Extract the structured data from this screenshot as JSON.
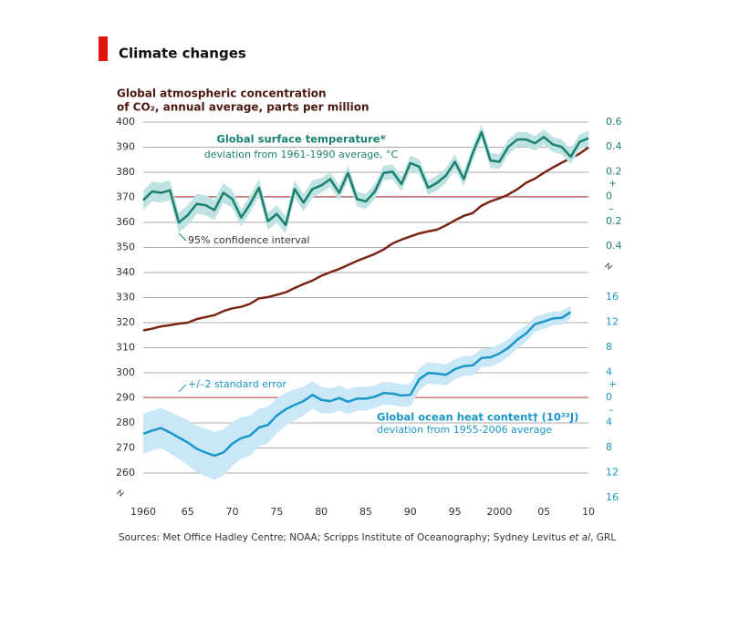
{
  "chart_data": {
    "type": "line",
    "title": "Climate changes",
    "y_label": [
      "Global atmospheric concentration",
      "of CO₂, annual average, parts per million"
    ],
    "source": [
      "Sources: Met Office Hadley Centre; NOAA; Scripps Institute of Oceanography; Sydney Levitus ",
      "et al",
      ", GRL"
    ],
    "xlim": [
      1960,
      2010
    ],
    "xticks": [
      1960,
      {
        "value": 1965,
        "label": "65"
      },
      {
        "value": 1970,
        "label": "70"
      },
      {
        "value": 1975,
        "label": "75"
      },
      {
        "value": 1980,
        "label": "80"
      },
      {
        "value": 1985,
        "label": "85"
      },
      {
        "value": 1990,
        "label": "90"
      },
      {
        "value": 1995,
        "label": "95"
      },
      2000,
      {
        "value": 2005,
        "label": "05"
      },
      {
        "value": 2010,
        "label": "10"
      }
    ],
    "ylim": [
      260,
      400
    ],
    "yticks": [
      260,
      270,
      280,
      290,
      300,
      310,
      320,
      330,
      340,
      350,
      360,
      370,
      380,
      390,
      400
    ],
    "y2lim": [
      -0.4,
      0.6
    ],
    "y2ticks": [
      {
        "value": -0.4,
        "label": "0.4"
      },
      {
        "value": -0.2,
        "label": "0.2"
      },
      0,
      0.2,
      0.4,
      0.6
    ],
    "y2_signs": [
      "+",
      "–"
    ],
    "y3lim": [
      -16,
      16
    ],
    "y3ticks": [
      {
        "value": -16,
        "label": "16"
      },
      {
        "value": -12,
        "label": "12"
      },
      {
        "value": -8,
        "label": "8"
      },
      {
        "value": -4,
        "label": "4"
      },
      0,
      4,
      8,
      12,
      16
    ],
    "y3_signs": [
      "+",
      "–"
    ],
    "series": [
      {
        "name": "CO2",
        "color": "#7a2513",
        "axis": "y",
        "x0": 1960,
        "values": [
          316.9,
          317.6,
          318.5,
          319.0,
          319.6,
          320.0,
          321.4,
          322.2,
          323.0,
          324.6,
          325.7,
          326.3,
          327.5,
          329.7,
          330.2,
          331.1,
          332.1,
          333.8,
          335.4,
          336.8,
          338.7,
          340.1,
          341.4,
          343.0,
          344.6,
          346.0,
          347.4,
          349.2,
          351.6,
          353.1,
          354.4,
          355.6,
          356.4,
          357.1,
          358.8,
          360.8,
          362.6,
          363.7,
          366.7,
          368.4,
          369.6,
          371.1,
          373.2,
          375.8,
          377.5,
          379.8,
          381.9,
          383.8,
          385.6,
          387.4,
          389.9
        ]
      },
      {
        "name": "Global surface temperature*",
        "subtitle": "deviation from 1961-1990 average, °C",
        "color": "#1a8070",
        "band_color": "#bfe2e2",
        "axis": "y2",
        "x0": 1960,
        "band_label": "95% confidence interval",
        "values": [
          -0.03,
          0.04,
          0.03,
          0.05,
          -0.21,
          -0.15,
          -0.06,
          -0.07,
          -0.11,
          0.03,
          -0.02,
          -0.17,
          -0.06,
          0.07,
          -0.2,
          -0.14,
          -0.23,
          0.06,
          -0.05,
          0.06,
          0.09,
          0.14,
          0.03,
          0.19,
          -0.02,
          -0.04,
          0.04,
          0.19,
          0.2,
          0.1,
          0.27,
          0.24,
          0.07,
          0.11,
          0.17,
          0.28,
          0.14,
          0.35,
          0.52,
          0.29,
          0.28,
          0.4,
          0.46,
          0.46,
          0.43,
          0.48,
          0.42,
          0.4,
          0.32,
          0.44,
          0.47
        ],
        "errors": [
          0.08,
          0.08,
          0.08,
          0.08,
          0.08,
          0.08,
          0.08,
          0.08,
          0.08,
          0.08,
          0.07,
          0.07,
          0.07,
          0.07,
          0.07,
          0.07,
          0.07,
          0.07,
          0.07,
          0.07,
          0.06,
          0.06,
          0.06,
          0.06,
          0.06,
          0.06,
          0.06,
          0.06,
          0.06,
          0.06,
          0.06,
          0.06,
          0.06,
          0.06,
          0.06,
          0.06,
          0.06,
          0.06,
          0.06,
          0.06,
          0.06,
          0.06,
          0.06,
          0.06,
          0.06,
          0.06,
          0.06,
          0.06,
          0.06,
          0.06,
          0.06
        ]
      },
      {
        "name": "Global ocean heat content† (10²²J)",
        "subtitle": "deviation from 1955-2006 average",
        "color": "#1a96c8",
        "band_color": "#c9e7f7",
        "axis": "y3",
        "x0": 1960,
        "band_label": "+/–2 standard error",
        "values": [
          -5.8,
          -5.3,
          -4.9,
          -5.6,
          -6.4,
          -7.2,
          -8.2,
          -8.8,
          -9.3,
          -8.8,
          -7.4,
          -6.5,
          -6.1,
          -4.8,
          -4.4,
          -2.9,
          -1.9,
          -1.2,
          -0.6,
          0.4,
          -0.4,
          -0.6,
          -0.1,
          -0.7,
          -0.2,
          -0.2,
          0.1,
          0.7,
          0.6,
          0.3,
          0.4,
          2.9,
          3.9,
          3.8,
          3.6,
          4.5,
          5.0,
          5.1,
          6.3,
          6.4,
          7.0,
          7.9,
          9.2,
          10.2,
          11.7,
          12.1,
          12.6,
          12.7,
          13.6
        ],
        "errors": [
          3.2,
          3.2,
          3.2,
          3.3,
          3.4,
          3.6,
          3.7,
          3.8,
          3.8,
          3.7,
          3.5,
          3.3,
          3.2,
          3.0,
          2.9,
          2.8,
          2.6,
          2.5,
          2.3,
          2.2,
          2.1,
          2.0,
          2.0,
          2.0,
          1.9,
          1.9,
          1.8,
          1.8,
          1.8,
          1.8,
          1.8,
          1.8,
          1.7,
          1.7,
          1.7,
          1.6,
          1.6,
          1.6,
          1.5,
          1.5,
          1.5,
          1.4,
          1.4,
          1.3,
          1.2,
          1.2,
          1.1,
          1.1,
          1.0
        ]
      }
    ]
  }
}
